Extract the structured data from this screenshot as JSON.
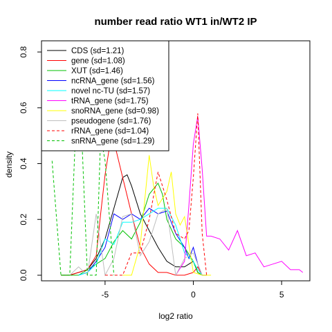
{
  "chart_data": {
    "type": "line",
    "title": "number read ratio WT1 in/WT2 IP",
    "xlabel": "log2 ratio",
    "ylabel": "density",
    "xlim": [
      -8.6,
      6.6
    ],
    "ylim": [
      -0.02,
      0.84
    ],
    "x_ticks": [
      -5,
      0,
      5
    ],
    "y_ticks": [
      0.0,
      0.2,
      0.4,
      0.6,
      0.8
    ],
    "x_tick_labels": [
      "-5",
      "0",
      "5"
    ],
    "y_tick_labels": [
      "0.0",
      "0.2",
      "0.4",
      "0.6",
      "0.8"
    ],
    "legend_position": "top-left",
    "series": [
      {
        "name": "CDS (sd=1.21)",
        "color": "#000000",
        "dash": "solid",
        "x": [
          -7.5,
          -7,
          -6.5,
          -6,
          -5.5,
          -5,
          -4.5,
          -4,
          -3.75,
          -3.5,
          -3,
          -2.5,
          -2,
          -1.5,
          -1,
          -0.5,
          0,
          0.25,
          0.5,
          0.75
        ],
        "y": [
          0,
          0,
          0.01,
          0.02,
          0.06,
          0.13,
          0.24,
          0.35,
          0.36,
          0.32,
          0.22,
          0.16,
          0.1,
          0.05,
          0.03,
          0.03,
          0.05,
          0.01,
          0,
          0
        ]
      },
      {
        "name": "gene (sd=1.08)",
        "color": "#ff0000",
        "dash": "solid",
        "x": [
          -7.5,
          -7,
          -6.5,
          -6,
          -5.5,
          -5.25,
          -5,
          -4.75,
          -4.5,
          -4,
          -3.5,
          -3,
          -2.5,
          -2,
          -1.5,
          -1,
          -0.5,
          0,
          0.25,
          0.5
        ],
        "y": [
          0,
          0,
          0.01,
          0.02,
          0.07,
          0.22,
          0.36,
          0.46,
          0.48,
          0.35,
          0.22,
          0.1,
          0.04,
          0.01,
          0.01,
          0,
          0,
          0.01,
          0.03,
          0
        ]
      },
      {
        "name": "XUT (sd=1.46)",
        "color": "#00c000",
        "dash": "solid",
        "x": [
          -7.5,
          -7,
          -6.5,
          -6,
          -5.5,
          -5,
          -4.5,
          -4,
          -3.5,
          -3,
          -2.5,
          -2,
          -1.75,
          -1.5,
          -1,
          -0.5,
          0,
          0.25,
          0.5
        ],
        "y": [
          0,
          0,
          0,
          0.02,
          0.04,
          0.06,
          0.12,
          0.16,
          0.13,
          0.19,
          0.29,
          0.33,
          0.29,
          0.2,
          0.13,
          0.1,
          0.05,
          0.01,
          0
        ]
      },
      {
        "name": "ncRNA_gene (sd=1.56)",
        "color": "#0000ff",
        "dash": "solid",
        "x": [
          -6.5,
          -6,
          -5.5,
          -5,
          -4.5,
          -4,
          -3.5,
          -3,
          -2.5,
          -2,
          -1.5,
          -1,
          -0.5,
          -0.25,
          0,
          0.25,
          0.5
        ],
        "y": [
          0,
          0.01,
          0.05,
          0.1,
          0.22,
          0.2,
          0.22,
          0.2,
          0.24,
          0.22,
          0.23,
          0.15,
          0.1,
          0.06,
          0.1,
          0.04,
          0
        ]
      },
      {
        "name": "novel nc-TU (sd=1.57)",
        "color": "#00ffff",
        "dash": "solid",
        "x": [
          -6.5,
          -6,
          -5.5,
          -5,
          -4.5,
          -4,
          -3.5,
          -3,
          -2.5,
          -2,
          -1.5,
          -1,
          -0.5,
          0,
          0.25,
          0.5
        ],
        "y": [
          0,
          0.01,
          0.04,
          0.13,
          0.11,
          0.19,
          0.19,
          0.2,
          0.22,
          0.24,
          0.24,
          0.18,
          0.08,
          0.05,
          0.02,
          0
        ]
      },
      {
        "name": "tRNA_gene (sd=1.75)",
        "color": "#ff00ff",
        "dash": "solid",
        "x": [
          -1,
          -0.5,
          -0.25,
          0,
          0.25,
          0.5,
          0.75,
          1,
          1.5,
          2,
          2.5,
          3,
          3.5,
          4,
          4.5,
          5,
          5.5,
          6,
          6.2
        ],
        "y": [
          0,
          0.05,
          0.25,
          0.47,
          0.57,
          0.38,
          0.14,
          0.14,
          0.13,
          0.09,
          0.16,
          0.07,
          0.08,
          0.03,
          0.04,
          0.05,
          0.02,
          0.02,
          0.01
        ]
      },
      {
        "name": "snoRNA_gene (sd=0.98)",
        "color": "#ffff00",
        "dash": "solid",
        "x": [
          -4,
          -3.5,
          -3,
          -2.5,
          -2.25,
          -2,
          -1.5,
          -1.25,
          -1,
          -0.75,
          -0.5,
          0,
          0.5,
          1
        ],
        "y": [
          0,
          0,
          0.11,
          0.43,
          0.32,
          0.25,
          0.3,
          0.37,
          0.22,
          0.18,
          0.21,
          0.01,
          0,
          0
        ]
      },
      {
        "name": "pseudogene (sd=1.76)",
        "color": "#bebebe",
        "dash": "solid",
        "x": [
          -7,
          -6.5,
          -6,
          -5.5,
          -5,
          -4.5,
          -4,
          -3.5,
          -3,
          -2.5,
          -2,
          -1.5,
          -1,
          -0.5,
          0,
          0.5
        ],
        "y": [
          0,
          0.03,
          0,
          0.22,
          0,
          0.06,
          0.21,
          0.22,
          0.07,
          0.12,
          0.22,
          0.24,
          0,
          0.06,
          0.08,
          0
        ]
      },
      {
        "name": "rRNA_gene (sd=1.04)",
        "color": "#ff0000",
        "dash": "4,3",
        "x": [
          -5,
          -4,
          -3.5,
          -3,
          -2.5,
          -2,
          -1.5,
          -1,
          -0.5,
          -0.25,
          0,
          0.25,
          0.5,
          0.75
        ],
        "y": [
          0,
          0,
          0.08,
          0.08,
          0.2,
          0.37,
          0.27,
          0.15,
          0.13,
          0.16,
          0.35,
          0.58,
          0.15,
          0
        ]
      },
      {
        "name": "snRNA_gene (sd=1.29)",
        "color": "#00c000",
        "dash": "4,3",
        "x": [
          -8,
          -7.5,
          -7,
          -6.5,
          -6,
          -5.5,
          -5.25,
          -5,
          -4.5
        ],
        "y": [
          0.41,
          0,
          0,
          0.78,
          0,
          0,
          0.5,
          0.41,
          0
        ]
      }
    ]
  }
}
